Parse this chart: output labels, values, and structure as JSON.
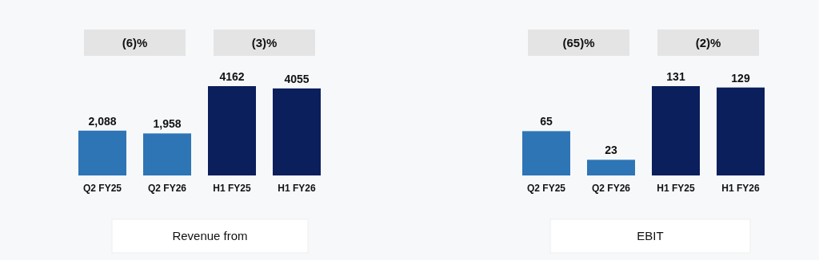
{
  "chart_data": [
    {
      "type": "bar",
      "title": "Revenue from",
      "categories": [
        "Q2 FY25",
        "Q2 FY26",
        "H1 FY25",
        "H1 FY26"
      ],
      "values": [
        2088,
        1958,
        4162,
        4055
      ],
      "colors": [
        "#2e75b6",
        "#2e75b6",
        "#0b1f5c",
        "#0b1f5c"
      ],
      "value_labels": [
        "2,088",
        "1,958",
        "4162",
        "4055"
      ],
      "annotations": [
        "(6)%",
        "(3)%"
      ]
    },
    {
      "type": "bar",
      "title": "EBIT",
      "categories": [
        "Q2 FY25",
        "Q2 FY26",
        "H1 FY25",
        "H1 FY26"
      ],
      "values": [
        65,
        23,
        131,
        129
      ],
      "colors": [
        "#2e75b6",
        "#2e75b6",
        "#0b1f5c",
        "#0b1f5c"
      ],
      "data_labels": true,
      "annotations": [
        "(65)%",
        "(2)%"
      ]
    }
  ]
}
